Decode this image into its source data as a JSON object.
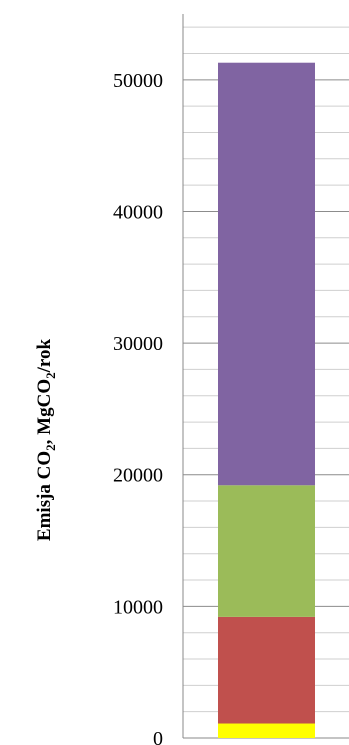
{
  "chart_data": {
    "type": "bar",
    "stacked": true,
    "categories": [
      ""
    ],
    "series": [
      {
        "color": "#FFFF00",
        "values": [
          1100
        ]
      },
      {
        "color": "#C0504D",
        "values": [
          8100
        ]
      },
      {
        "color": "#9BBB59",
        "values": [
          10000
        ]
      },
      {
        "color": "#8064A2",
        "values": [
          32100
        ]
      }
    ],
    "ylim": [
      0,
      55000
    ],
    "yticks": [
      "0",
      "10000",
      "20000",
      "30000",
      "40000",
      "50000"
    ],
    "ytick_values": [
      0,
      10000,
      20000,
      30000,
      40000,
      50000
    ],
    "minor_grid_step": 2000,
    "ylabel": {
      "t1": "Emisja CO",
      "s1": "2",
      "t2": ", MgCO",
      "s2": "2",
      "t3": "/rok"
    },
    "grid": true,
    "legend": "none"
  }
}
